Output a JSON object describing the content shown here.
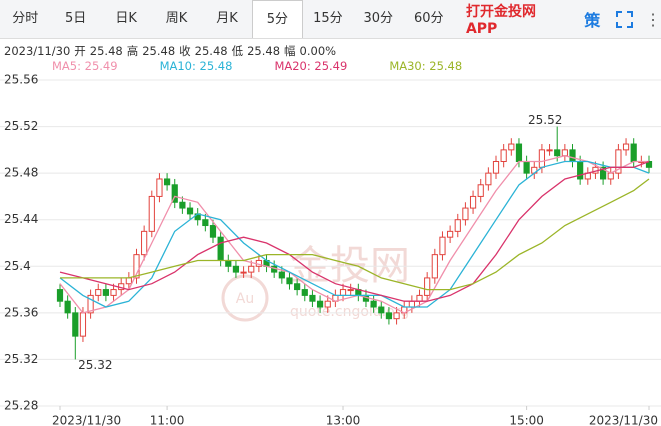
{
  "tabs": [
    "分时",
    "5日",
    "日K",
    "周K",
    "月K",
    "5分",
    "15分",
    "30分",
    "60分"
  ],
  "active_tab": 5,
  "app_link": "打开金投网APP",
  "icon_text": "策",
  "info": {
    "date": "2023/11/30",
    "items": [
      {
        "label": "开",
        "value": "25.48"
      },
      {
        "label": "高",
        "value": "25.48"
      },
      {
        "label": "收",
        "value": "25.48"
      },
      {
        "label": "低",
        "value": "25.48"
      },
      {
        "label": "幅",
        "value": "0.00%"
      }
    ]
  },
  "watermark": {
    "title": "金投网",
    "logo": "Au",
    "url": "quote.cngold.org"
  },
  "chart_data": {
    "type": "candlestick",
    "ylim": [
      25.28,
      25.56
    ],
    "yticks": [
      25.28,
      25.32,
      25.36,
      25.4,
      25.44,
      25.48,
      25.52,
      25.56
    ],
    "grid": true,
    "xlim": [
      0,
      77
    ],
    "xticks": [
      {
        "value": 0,
        "label": "2023/11/30"
      },
      {
        "value": 14,
        "label": "11:00"
      },
      {
        "value": 37,
        "label": "13:00"
      },
      {
        "value": 61,
        "label": "15:00"
      },
      {
        "value": 77,
        "label": "2023/11/30"
      }
    ],
    "up_color": "#e2433d",
    "down_color": "#1a9e2a",
    "open": [
      25.38,
      25.37,
      25.36,
      25.34,
      25.36,
      25.375,
      25.38,
      25.375,
      25.38,
      25.385,
      25.39,
      25.41,
      25.43,
      25.46,
      25.475,
      25.47,
      25.455,
      25.45,
      25.445,
      25.44,
      25.435,
      25.425,
      25.405,
      25.4,
      25.395,
      25.395,
      25.4,
      25.405,
      25.4,
      25.395,
      25.39,
      25.385,
      25.38,
      25.375,
      25.37,
      25.365,
      25.37,
      25.375,
      25.38,
      25.38,
      25.375,
      25.37,
      25.365,
      25.36,
      25.355,
      25.36,
      25.365,
      25.37,
      25.375,
      25.39,
      25.41,
      25.425,
      25.43,
      25.44,
      25.45,
      25.46,
      25.47,
      25.48,
      25.49,
      25.5,
      25.505,
      25.49,
      25.48,
      25.485,
      25.5,
      25.5,
      25.495,
      25.5,
      25.49,
      25.475,
      25.48,
      25.485,
      25.475,
      25.48,
      25.5,
      25.505,
      25.49,
      25.49
    ],
    "high": [
      25.385,
      25.375,
      25.365,
      25.365,
      25.38,
      25.385,
      25.385,
      25.385,
      25.39,
      25.395,
      25.415,
      25.435,
      25.465,
      25.48,
      25.48,
      25.475,
      25.46,
      25.455,
      25.45,
      25.445,
      25.44,
      25.43,
      25.41,
      25.405,
      25.4,
      25.405,
      25.41,
      25.41,
      25.405,
      25.4,
      25.395,
      25.39,
      25.385,
      25.38,
      25.375,
      25.375,
      25.38,
      25.385,
      25.385,
      25.385,
      25.38,
      25.375,
      25.37,
      25.365,
      25.365,
      25.37,
      25.375,
      25.38,
      25.395,
      25.415,
      25.43,
      25.435,
      25.445,
      25.455,
      25.465,
      25.475,
      25.485,
      25.495,
      25.505,
      25.51,
      25.51,
      25.495,
      25.49,
      25.505,
      25.505,
      25.52,
      25.505,
      25.505,
      25.495,
      25.485,
      25.49,
      25.49,
      25.485,
      25.505,
      25.51,
      25.51,
      25.495,
      25.495
    ],
    "low": [
      25.365,
      25.355,
      25.32,
      25.335,
      25.355,
      25.37,
      25.37,
      25.37,
      25.375,
      25.38,
      25.385,
      25.405,
      25.425,
      25.455,
      25.465,
      25.45,
      25.445,
      25.44,
      25.435,
      25.43,
      25.42,
      25.4,
      25.395,
      25.39,
      25.39,
      25.39,
      25.395,
      25.395,
      25.39,
      25.385,
      25.38,
      25.375,
      25.37,
      25.365,
      25.36,
      25.36,
      25.365,
      25.37,
      25.375,
      25.37,
      25.365,
      25.36,
      25.355,
      25.35,
      25.35,
      25.355,
      25.36,
      25.365,
      25.37,
      25.385,
      25.405,
      25.42,
      25.425,
      25.435,
      25.445,
      25.455,
      25.465,
      25.475,
      25.485,
      25.495,
      25.485,
      25.475,
      25.475,
      25.48,
      25.495,
      25.49,
      25.49,
      25.485,
      25.47,
      25.47,
      25.475,
      25.47,
      25.47,
      25.475,
      25.495,
      25.485,
      25.485,
      25.48
    ],
    "close": [
      25.37,
      25.36,
      25.34,
      25.36,
      25.375,
      25.38,
      25.375,
      25.38,
      25.385,
      25.39,
      25.41,
      25.43,
      25.46,
      25.475,
      25.47,
      25.455,
      25.45,
      25.445,
      25.44,
      25.435,
      25.425,
      25.405,
      25.4,
      25.395,
      25.395,
      25.4,
      25.405,
      25.4,
      25.395,
      25.39,
      25.385,
      25.38,
      25.375,
      25.37,
      25.365,
      25.37,
      25.375,
      25.38,
      25.38,
      25.375,
      25.37,
      25.365,
      25.36,
      25.355,
      25.36,
      25.365,
      25.37,
      25.375,
      25.39,
      25.41,
      25.425,
      25.43,
      25.44,
      25.45,
      25.46,
      25.47,
      25.48,
      25.49,
      25.5,
      25.505,
      25.49,
      25.48,
      25.485,
      25.5,
      25.5,
      25.495,
      25.5,
      25.49,
      25.475,
      25.48,
      25.485,
      25.475,
      25.48,
      25.5,
      25.505,
      25.49,
      25.49,
      25.485
    ],
    "ma_x": [
      0,
      3,
      6,
      9,
      12,
      15,
      18,
      21,
      24,
      27,
      30,
      33,
      36,
      39,
      42,
      45,
      48,
      51,
      54,
      57,
      60,
      63,
      66,
      69,
      72,
      75,
      77
    ],
    "ma_series": [
      {
        "name": "MA5: 25.49",
        "color": "#f08fab",
        "values": [
          25.385,
          25.36,
          25.365,
          25.38,
          25.42,
          25.46,
          25.455,
          25.43,
          25.405,
          25.4,
          25.395,
          25.38,
          25.37,
          25.375,
          25.37,
          25.36,
          25.37,
          25.405,
          25.435,
          25.465,
          25.49,
          25.49,
          25.495,
          25.49,
          25.48,
          25.49,
          25.49
        ]
      },
      {
        "name": "MA10: 25.48",
        "color": "#2bb3d6",
        "values": [
          25.39,
          25.375,
          25.365,
          25.37,
          25.39,
          25.43,
          25.445,
          25.44,
          25.42,
          25.405,
          25.395,
          25.385,
          25.375,
          25.375,
          25.375,
          25.365,
          25.365,
          25.38,
          25.41,
          25.44,
          25.47,
          25.485,
          25.49,
          25.49,
          25.485,
          25.485,
          25.48
        ]
      },
      {
        "name": "MA20: 25.49",
        "color": "#d9336b",
        "values": [
          25.395,
          25.39,
          25.385,
          25.38,
          25.385,
          25.395,
          25.41,
          25.42,
          25.425,
          25.42,
          25.41,
          25.395,
          25.385,
          25.38,
          25.375,
          25.37,
          25.37,
          25.375,
          25.385,
          25.41,
          25.44,
          25.46,
          25.475,
          25.48,
          25.485,
          25.485,
          25.49
        ]
      },
      {
        "name": "MA30: 25.48",
        "color": "#9bb528",
        "values": [
          25.39,
          25.39,
          25.39,
          25.39,
          25.395,
          25.4,
          25.405,
          25.405,
          25.405,
          25.41,
          25.41,
          25.41,
          25.405,
          25.4,
          25.39,
          25.385,
          25.38,
          25.38,
          25.385,
          25.395,
          25.41,
          25.42,
          25.435,
          25.445,
          25.455,
          25.465,
          25.475
        ]
      }
    ],
    "annotations": [
      {
        "label": "25.52",
        "value": 25.52,
        "x": 65
      },
      {
        "label": "25.32",
        "value": 25.32,
        "x": 2
      }
    ]
  }
}
